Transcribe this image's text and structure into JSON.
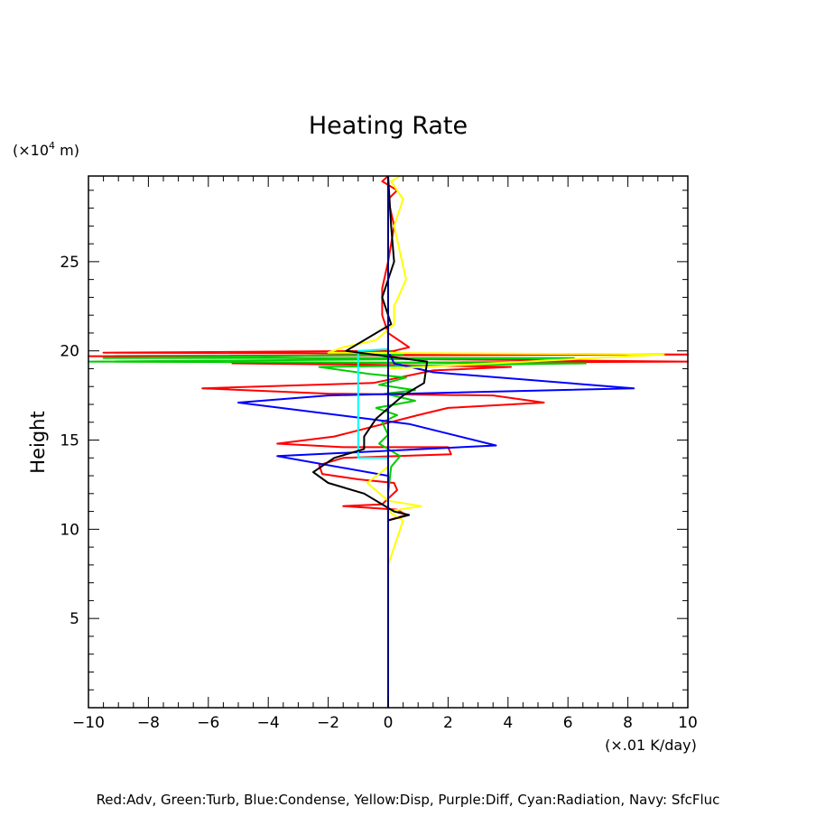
{
  "chart_data": {
    "type": "line",
    "title": "Heating Rate",
    "ylabel": "Height",
    "y_unit": "(×10",
    "y_unit_exp": "4",
    "y_unit_tail": " m)",
    "x_unit": "(×.01 K/day)",
    "legend_text": "Red:Adv, Green:Turb, Blue:Condense, Yellow:Disp, Purple:Diff, Cyan:Radiation, Navy: SfcFluc",
    "xlim": [
      -10,
      10
    ],
    "ylim": [
      0,
      29.8
    ],
    "x_ticks": [
      -10,
      -8,
      -6,
      -4,
      -2,
      0,
      2,
      4,
      6,
      8,
      10
    ],
    "x_tick_labels": [
      "−10",
      "−8",
      "−6",
      "−4",
      "−2",
      "0",
      "2",
      "4",
      "6",
      "8",
      "10"
    ],
    "y_ticks": [
      5,
      10,
      15,
      20,
      25
    ],
    "y_tick_labels": [
      "5",
      "10",
      "15",
      "20",
      "25"
    ],
    "grid": false,
    "series": [
      {
        "color": "#ff0000",
        "points": [
          [
            0,
            0
          ],
          [
            0,
            10.5
          ],
          [
            0.6,
            10.8
          ],
          [
            0.3,
            11.1
          ],
          [
            -1.5,
            11.3
          ],
          [
            -0.2,
            11.4
          ],
          [
            0.3,
            12.2
          ],
          [
            0.2,
            12.6
          ],
          [
            -1,
            12.8
          ],
          [
            -2.2,
            13.1
          ],
          [
            -2.3,
            13.6
          ],
          [
            -1.5,
            14
          ],
          [
            2.1,
            14.2
          ],
          [
            2,
            14.6
          ],
          [
            -1.5,
            14.6
          ],
          [
            -3.7,
            14.8
          ],
          [
            -1.8,
            15.2
          ],
          [
            1,
            16.4
          ],
          [
            2,
            16.8
          ],
          [
            5.2,
            17.1
          ],
          [
            3.5,
            17.5
          ],
          [
            -2,
            17.6
          ],
          [
            -6.2,
            17.9
          ],
          [
            -0.5,
            18.2
          ],
          [
            1.5,
            18.9
          ],
          [
            4.1,
            19.1
          ],
          [
            0.5,
            19.2
          ],
          [
            -5.2,
            19.3
          ],
          [
            10,
            19.4
          ],
          [
            -10,
            19.7
          ],
          [
            10,
            19.8
          ],
          [
            -9.5,
            19.9
          ],
          [
            0.2,
            20
          ],
          [
            0.7,
            20.2
          ],
          [
            0,
            21
          ],
          [
            -0.2,
            22
          ],
          [
            -0.2,
            23.5
          ],
          [
            0,
            25
          ],
          [
            0.2,
            27
          ],
          [
            0,
            28.5
          ],
          [
            0.3,
            29
          ],
          [
            -0.2,
            29.5
          ],
          [
            0,
            29.8
          ]
        ]
      },
      {
        "color": "#00cc00",
        "points": [
          [
            0,
            10.5
          ],
          [
            0,
            12
          ],
          [
            0.1,
            13.5
          ],
          [
            0.4,
            14.1
          ],
          [
            -0.3,
            14.8
          ],
          [
            0,
            15.3
          ],
          [
            -0.2,
            16
          ],
          [
            0.3,
            16.4
          ],
          [
            -0.4,
            16.8
          ],
          [
            0.9,
            17.2
          ],
          [
            -0.1,
            17.6
          ],
          [
            0.9,
            17.8
          ],
          [
            -0.3,
            18.1
          ],
          [
            0.6,
            18.5
          ],
          [
            -0.6,
            18.7
          ],
          [
            -2.3,
            19.1
          ],
          [
            6.6,
            19.3
          ],
          [
            -10,
            19.4
          ],
          [
            6.2,
            19.6
          ],
          [
            -9.5,
            19.6
          ],
          [
            0.5,
            19.8
          ],
          [
            0,
            20
          ]
        ]
      },
      {
        "color": "#0000ff",
        "points": [
          [
            0,
            0
          ],
          [
            0,
            13
          ],
          [
            -3.7,
            14.1
          ],
          [
            3.6,
            14.7
          ],
          [
            0.7,
            15.9
          ],
          [
            -5,
            17.1
          ],
          [
            -2,
            17.5
          ],
          [
            8.2,
            17.9
          ],
          [
            1.5,
            18.8
          ],
          [
            0.2,
            19.3
          ],
          [
            0,
            20
          ]
        ]
      },
      {
        "color": "#ffff00",
        "points": [
          [
            0,
            8
          ],
          [
            0.3,
            9.5
          ],
          [
            0.5,
            10.5
          ],
          [
            0,
            11
          ],
          [
            1.1,
            11.3
          ],
          [
            0,
            11.6
          ],
          [
            -0.7,
            12.6
          ],
          [
            0,
            13.5
          ],
          [
            0,
            19
          ],
          [
            9.2,
            19.8
          ],
          [
            -2,
            19.9
          ],
          [
            -1.5,
            20.2
          ],
          [
            -0.4,
            20.6
          ],
          [
            0.2,
            21.5
          ],
          [
            0.2,
            22.5
          ],
          [
            0.6,
            24
          ],
          [
            0.2,
            27
          ],
          [
            0.5,
            28.5
          ],
          [
            0.1,
            29.5
          ],
          [
            0.4,
            29.8
          ]
        ]
      },
      {
        "color": "#00ffff",
        "points": [
          [
            0,
            14
          ],
          [
            -1,
            14
          ],
          [
            -1,
            20
          ],
          [
            0,
            20.1
          ]
        ]
      },
      {
        "color": "#000000",
        "points": [
          [
            0,
            8
          ],
          [
            0,
            10.5
          ],
          [
            0.7,
            10.8
          ],
          [
            0.2,
            11
          ],
          [
            -0.8,
            12
          ],
          [
            -2,
            12.6
          ],
          [
            -2.5,
            13.2
          ],
          [
            -1.8,
            14
          ],
          [
            -0.8,
            14.5
          ],
          [
            -0.8,
            15.2
          ],
          [
            -0.4,
            16.2
          ],
          [
            0.5,
            17.5
          ],
          [
            1.2,
            18.2
          ],
          [
            1.3,
            19.4
          ],
          [
            -1.4,
            20
          ],
          [
            0.1,
            21.5
          ],
          [
            -0.2,
            23
          ],
          [
            0.2,
            25
          ],
          [
            0.1,
            27
          ],
          [
            0,
            29.8
          ]
        ]
      },
      {
        "color": "#000080",
        "points": [
          [
            0,
            0
          ],
          [
            0,
            29.8
          ]
        ]
      }
    ]
  }
}
